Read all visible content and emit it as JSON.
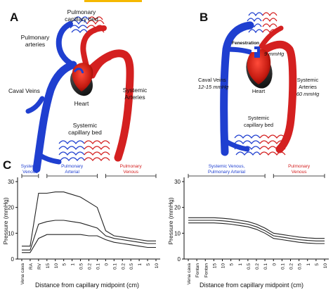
{
  "panel_a": {
    "letter": "A",
    "labels": {
      "pulmonary_bed_1": "Pulmonary",
      "pulmonary_bed_2": "capillary bed",
      "pulmonary_arteries_1": "Pulmonary",
      "pulmonary_arteries_2": "arteries",
      "heart": "Heart",
      "caval_veins": "Caval Veins",
      "systemic_arteries_1": "Systemic",
      "systemic_arteries_2": "Arteries",
      "systemic_bed_1": "Systemic",
      "systemic_bed_2": "capillary bed"
    }
  },
  "panel_b": {
    "letter": "B",
    "labels": {
      "fenestration": "Fenestration",
      "pressure_9": "9 mmHg",
      "caval_veins": "Caval Veins",
      "caval_pressure": "12-15 mmHg",
      "heart": "Heart",
      "systemic_arteries_1": "Systemic",
      "systemic_arteries_2": "Arteries",
      "systemic_pressure": "60 mmHg",
      "systemic_bed_1": "Systemic",
      "systemic_bed_2": "capillary bed"
    }
  },
  "panel_c": {
    "letter": "C"
  },
  "colors": {
    "venous": "#1f3fd0",
    "arterial": "#d42020",
    "accent_bar": "#f5b800"
  },
  "chart_data": [
    {
      "type": "line",
      "xlabel": "Distance from capillary midpoint (cm)",
      "ylabel": "Pressure (mmHg)",
      "ylim": [
        0,
        30
      ],
      "yticks": [
        "0",
        "10",
        "20",
        "30"
      ],
      "categories": [
        "Vena cava",
        "RA",
        "RV",
        "15",
        "10",
        "5",
        "1",
        "0.5",
        "0.2",
        "0.1",
        "0",
        "0.1",
        "0.2",
        "0.5",
        "1",
        "5",
        "10"
      ],
      "regions": [
        {
          "label_1": "Systemic",
          "label_2": "Venous",
          "color": "#1f3fd0",
          "from": 0,
          "to": 2
        },
        {
          "label_1": "Pulmonary",
          "label_2": "Arterial",
          "color": "#1f3fd0",
          "from": 3,
          "to": 9
        },
        {
          "label_1": "Pulmonary",
          "label_2": "Venous",
          "color": "#d42020",
          "from": 10,
          "to": 16
        }
      ],
      "series": [
        {
          "values": [
            5,
            5,
            25.5,
            25.5,
            26,
            26,
            25,
            24,
            22,
            20,
            11,
            9,
            8.5,
            8,
            7.5,
            7,
            7
          ]
        },
        {
          "values": [
            3.5,
            3.5,
            13.5,
            14.5,
            15,
            15,
            14.5,
            14,
            13,
            12,
            9,
            8,
            7.5,
            7,
            6.5,
            6,
            6
          ]
        },
        {
          "values": [
            2.5,
            2.5,
            8,
            9.5,
            9.5,
            9.5,
            9.5,
            9.5,
            9,
            9,
            7.5,
            6.5,
            6,
            5.5,
            5,
            4.5,
            4.5
          ]
        }
      ]
    },
    {
      "type": "line",
      "xlabel": "Distance from capillary midpoint (cm)",
      "ylabel": "Pressure (mmHg)",
      "ylim": [
        0,
        30
      ],
      "yticks": [
        "0",
        "10",
        "20",
        "30"
      ],
      "categories": [
        "Vena cava",
        "Fontan",
        "Fontan",
        "15",
        "10",
        "5",
        "1",
        "0.5",
        "0.2",
        "0.1",
        "0",
        "0.1",
        "0.2",
        "0.5",
        "1",
        "5",
        "10"
      ],
      "regions": [
        {
          "label_1": "Systemic Venous,",
          "label_2": "Pulmonary  Arterial",
          "color": "#1f3fd0",
          "from": 0,
          "to": 9
        },
        {
          "label_1": "Pulmonary",
          "label_2": "Venous",
          "color": "#d42020",
          "from": 10,
          "to": 16
        }
      ],
      "series": [
        {
          "values": [
            16,
            16,
            16,
            16,
            15.8,
            15.5,
            15,
            14.5,
            13.5,
            12,
            10,
            9.5,
            9,
            8.5,
            8.2,
            8,
            8
          ]
        },
        {
          "values": [
            15,
            15,
            15,
            15,
            14.8,
            14.5,
            14,
            13.5,
            12.5,
            11,
            9,
            8.5,
            8,
            7.5,
            7.2,
            7,
            7
          ]
        },
        {
          "values": [
            14,
            14,
            14,
            14,
            13.8,
            13.5,
            13,
            12.5,
            11.5,
            10,
            8,
            7.5,
            7,
            6.5,
            6.2,
            6,
            6
          ]
        }
      ]
    }
  ]
}
